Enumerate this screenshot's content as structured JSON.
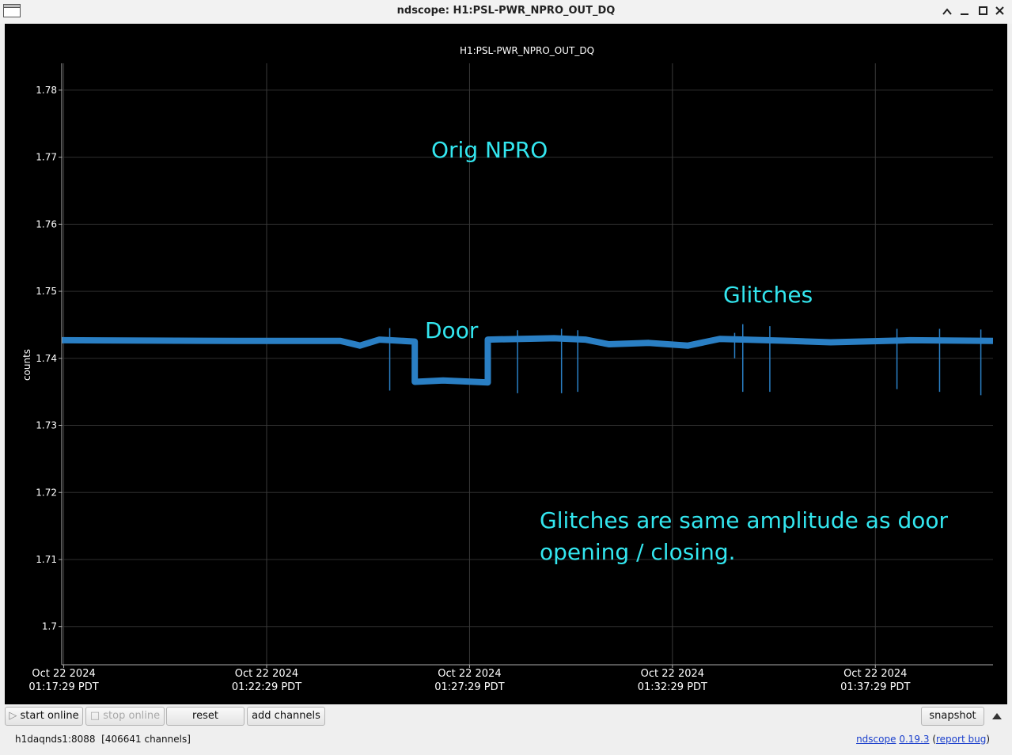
{
  "window": {
    "title": "ndscope: H1:PSL-PWR_NPRO_OUT_DQ"
  },
  "chart_data": {
    "type": "line",
    "title": "H1:PSL-PWR_NPRO_OUT_DQ",
    "ylabel": "counts",
    "ylim": [
      1.6943,
      1.784
    ],
    "yticks": [
      1.7,
      1.71,
      1.72,
      1.73,
      1.74,
      1.75,
      1.76,
      1.77,
      1.78
    ],
    "xlim": [
      "2024-10-22T01:17:26-07:00",
      "2024-10-22T01:40:23-07:00"
    ],
    "xticks": [
      {
        "value": "2024-10-22T01:17:29-07:00",
        "label": "Oct 22 2024\n01:17:29 PDT"
      },
      {
        "value": "2024-10-22T01:22:29-07:00",
        "label": "Oct 22 2024\n01:22:29 PDT"
      },
      {
        "value": "2024-10-22T01:27:29-07:00",
        "label": "Oct 22 2024\n01:27:29 PDT"
      },
      {
        "value": "2024-10-22T01:32:29-07:00",
        "label": "Oct 22 2024\n01:32:29 PDT"
      },
      {
        "value": "2024-10-22T01:37:29-07:00",
        "label": "Oct 22 2024\n01:37:29 PDT"
      }
    ],
    "grid": true,
    "series": [
      {
        "color": "#2a7fc4",
        "width": 8,
        "x": [
          "2024-10-22T01:17:26-07:00",
          "2024-10-22T01:21:46-07:00",
          "2024-10-22T01:24:18-07:00",
          "2024-10-22T01:24:47-07:00",
          "2024-10-22T01:25:16-07:00",
          "2024-10-22T01:26:08-07:00",
          "2024-10-22T01:26:08-07:00",
          "2024-10-22T01:26:50-07:00",
          "2024-10-22T01:27:56-07:00",
          "2024-10-22T01:27:56-07:00",
          "2024-10-22T01:29:34-07:00",
          "2024-10-22T01:30:20-07:00",
          "2024-10-22T01:30:55-07:00",
          "2024-10-22T01:31:54-07:00",
          "2024-10-22T01:32:52-07:00",
          "2024-10-22T01:33:39-07:00",
          "2024-10-22T01:35:24-07:00",
          "2024-10-22T01:36:23-07:00",
          "2024-10-22T01:38:20-07:00",
          "2024-10-22T01:40:23-07:00"
        ],
        "values": [
          1.7427,
          1.7426,
          1.7426,
          1.7419,
          1.7428,
          1.7425,
          1.7365,
          1.7367,
          1.7364,
          1.7428,
          1.743,
          1.7428,
          1.7421,
          1.7423,
          1.7419,
          1.7429,
          1.7426,
          1.7424,
          1.7427,
          1.7426
        ]
      },
      {
        "color": "#2a7fc4",
        "width": 1.5,
        "x": [
          "2024-10-22T01:25:31-07:00",
          "2024-10-22T01:25:31-07:00",
          "2024-10-22T01:25:31-07:00",
          "2024-10-22T01:28:40-07:00",
          "2024-10-22T01:28:40-07:00",
          "2024-10-22T01:28:40-07:00",
          "2024-10-22T01:29:45-07:00",
          "2024-10-22T01:29:45-07:00",
          "2024-10-22T01:29:45-07:00",
          "2024-10-22T01:30:09-07:00",
          "2024-10-22T01:30:09-07:00",
          "2024-10-22T01:30:09-07:00",
          "2024-10-22T01:34:01-07:00",
          "2024-10-22T01:34:01-07:00",
          "2024-10-22T01:34:01-07:00",
          "2024-10-22T01:34:13-07:00",
          "2024-10-22T01:34:13-07:00",
          "2024-10-22T01:34:13-07:00",
          "2024-10-22T01:34:53-07:00",
          "2024-10-22T01:34:53-07:00",
          "2024-10-22T01:34:53-07:00",
          "2024-10-22T01:38:01-07:00",
          "2024-10-22T01:38:01-07:00",
          "2024-10-22T01:38:01-07:00",
          "2024-10-22T01:39:04-07:00",
          "2024-10-22T01:39:04-07:00",
          "2024-10-22T01:39:04-07:00",
          "2024-10-22T01:40:05-07:00",
          "2024-10-22T01:40:05-07:00"
        ],
        "values": [
          1.7445,
          1.7352,
          null,
          1.7442,
          1.7348,
          null,
          1.7444,
          1.7348,
          null,
          1.7442,
          1.735,
          null,
          1.7438,
          1.74,
          null,
          1.7451,
          1.735,
          null,
          1.7448,
          1.735,
          null,
          1.7444,
          1.7354,
          null,
          1.7444,
          1.735,
          null,
          1.7443,
          1.7345
        ]
      }
    ],
    "annotations": [
      "Orig NPRO",
      "Door",
      "Glitches",
      "Glitches are same amplitude as door opening / closing."
    ]
  },
  "toolbar": {
    "buttons": [
      "start online",
      "stop online",
      "reset",
      "add channels",
      "snapshot"
    ]
  },
  "status": {
    "host": "h1daqnds1:8088",
    "channels": "[406641 channels]",
    "app": "ndscope",
    "version": "0.19.3",
    "open": "(",
    "bug": "report bug",
    "close": ")"
  }
}
